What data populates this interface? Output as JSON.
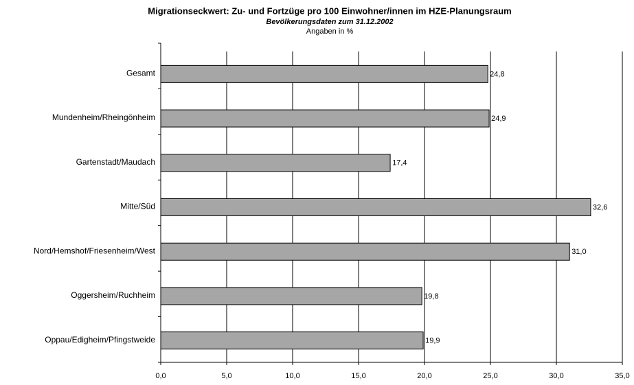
{
  "chart_data": {
    "type": "bar",
    "orientation": "horizontal",
    "title": "Migrationseckwert: Zu- und Fortzüge pro 100 Einwohner/innen im HZE-Planungsraum",
    "subtitle": "Bevölkerungsdaten zum 31.12.2002",
    "note": "Angaben in %",
    "categories": [
      "Gesamt",
      "Mundenheim/Rheingönheim",
      "Gartenstadt/Maudach",
      "Mitte/Süd",
      "Nord/Hemshof/Friesenheim/West",
      "Oggersheim/Ruchheim",
      "Oppau/Edigheim/Pfingstweide"
    ],
    "values": [
      24.8,
      24.9,
      17.4,
      32.6,
      31.0,
      19.8,
      19.9
    ],
    "value_labels": [
      "24,8",
      "24,9",
      "17,4",
      "32,6",
      "31,0",
      "19,8",
      "19,9"
    ],
    "color": "#a6a6a6",
    "xlim": [
      0,
      35
    ],
    "xticks": [
      {
        "value": 0,
        "label": "0,0"
      },
      {
        "value": 5,
        "label": "5,0"
      },
      {
        "value": 10,
        "label": "10,0"
      },
      {
        "value": 15,
        "label": "15,0"
      },
      {
        "value": 20,
        "label": "20,0"
      },
      {
        "value": 25,
        "label": "25,0"
      },
      {
        "value": 30,
        "label": "30,0"
      },
      {
        "value": 35,
        "label": "35,0"
      }
    ],
    "grid": true
  }
}
